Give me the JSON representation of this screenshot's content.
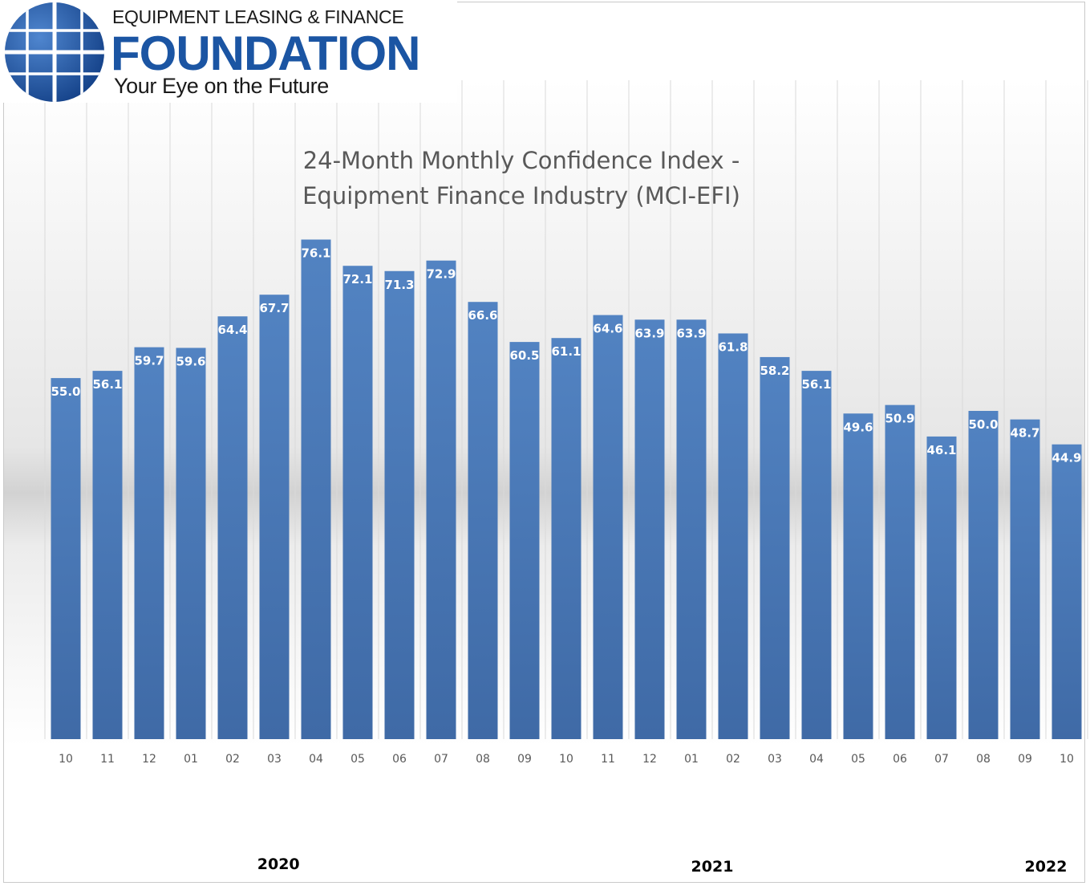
{
  "logo": {
    "top_line": "EQUIPMENT LEASING & FINANCE",
    "main": "FOUNDATION",
    "tagline": "Your Eye on the Future"
  },
  "colors": {
    "bar": "#4a7cbb",
    "label": "#ffffff",
    "gridline": "#d9d9d9",
    "logo_blue": "#1b55a3"
  },
  "chart_data": {
    "type": "bar",
    "title_line1": "24-Month Monthly Confidence Index -",
    "title_line2": "Equipment Finance Industry (MCI-EFI)",
    "categories": [
      "10",
      "11",
      "12",
      "01",
      "02",
      "03",
      "04",
      "05",
      "06",
      "07",
      "08",
      "09",
      "10",
      "11",
      "12",
      "01",
      "02",
      "03",
      "04",
      "05",
      "06",
      "07",
      "08",
      "09",
      "10"
    ],
    "values": [
      55.0,
      56.1,
      59.7,
      59.6,
      64.4,
      67.7,
      76.1,
      72.1,
      71.3,
      72.9,
      66.6,
      60.5,
      61.1,
      64.6,
      63.9,
      63.9,
      61.8,
      58.2,
      56.1,
      49.6,
      50.9,
      46.1,
      50.0,
      48.7,
      44.9
    ],
    "value_labels": [
      "55.0",
      "56.1",
      "59.7",
      "59.6",
      "64.4",
      "67.7",
      "76.1",
      "72.1",
      "71.3",
      "72.9",
      "66.6",
      "60.5",
      "61.1",
      "64.6",
      "63.9",
      "63.9",
      "61.8",
      "58.2",
      "56.1",
      "49.6",
      "50.9",
      "46.1",
      "50.0",
      "48.7",
      "44.9"
    ],
    "years": [
      {
        "label": "2020",
        "index": 5.6
      },
      {
        "label": "2021",
        "index": 16.0
      },
      {
        "label": "2022",
        "index": 24.0
      }
    ],
    "ylim": [
      0,
      90
    ],
    "grid": true,
    "legend": "none"
  }
}
